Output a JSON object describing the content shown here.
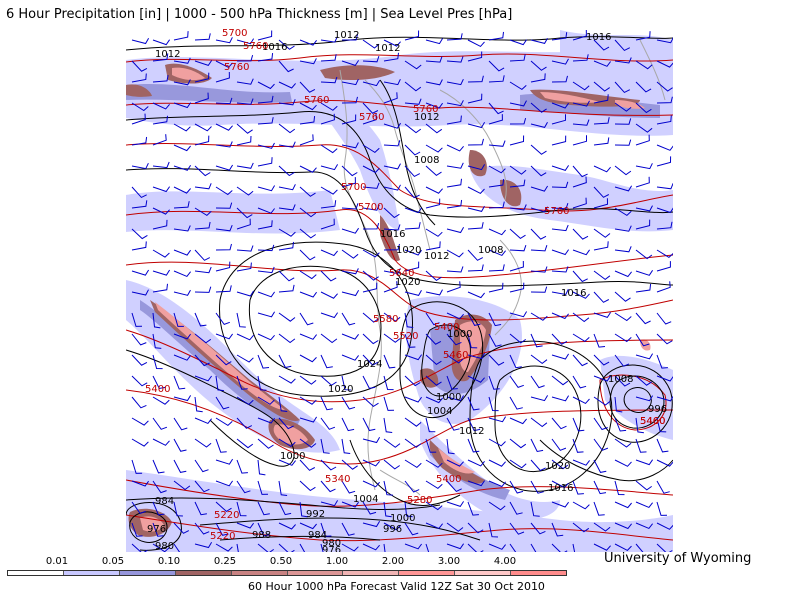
{
  "title": "6 Hour Precipitation [in] | 1000 - 500 hPa Thickness [m] | Sea Level Pres [hPa]",
  "credit": "University of Wyoming",
  "footer": "60 Hour 1000 hPa Forecast Valid 12Z Sat 30 Oct 2010",
  "legend": {
    "labels": [
      "0.01",
      "0.05",
      "0.10",
      "0.25",
      "0.50",
      "1.00",
      "2.00",
      "3.00",
      "4.00"
    ],
    "colors": [
      "#ffffff",
      "#c8c8ff",
      "#9696dc",
      "#a06464",
      "#c88282",
      "#dc9696",
      "#f0b4b4",
      "#ff9696",
      "#ffc8c8",
      "#ff8c8c"
    ]
  },
  "pressure_labels": [
    {
      "text": "1016"
    },
    {
      "text": "1016"
    },
    {
      "text": "1012"
    },
    {
      "text": "1012"
    },
    {
      "text": "1012"
    },
    {
      "text": "1008"
    },
    {
      "text": "1016"
    },
    {
      "text": "1020"
    },
    {
      "text": "1012"
    },
    {
      "text": "1008"
    },
    {
      "text": "1020"
    },
    {
      "text": "1016"
    },
    {
      "text": "1000"
    },
    {
      "text": "1024"
    },
    {
      "text": "1020"
    },
    {
      "text": "1000"
    },
    {
      "text": "1004"
    },
    {
      "text": "1008"
    },
    {
      "text": "996"
    },
    {
      "text": "1012"
    },
    {
      "text": "1020"
    },
    {
      "text": "1016"
    },
    {
      "text": "1000"
    },
    {
      "text": "1004"
    },
    {
      "text": "1000"
    },
    {
      "text": "992"
    },
    {
      "text": "996"
    },
    {
      "text": "984"
    },
    {
      "text": "988"
    },
    {
      "text": "984"
    },
    {
      "text": "980"
    },
    {
      "text": "976"
    },
    {
      "text": "980"
    },
    {
      "text": "976"
    },
    {
      "text": "1012"
    }
  ],
  "thickness_labels": [
    {
      "text": "5700"
    },
    {
      "text": "5760"
    },
    {
      "text": "5760"
    },
    {
      "text": "5760"
    },
    {
      "text": "5760"
    },
    {
      "text": "5760"
    },
    {
      "text": "5700"
    },
    {
      "text": "5700"
    },
    {
      "text": "5760"
    },
    {
      "text": "5640"
    },
    {
      "text": "5580"
    },
    {
      "text": "5520"
    },
    {
      "text": "5400"
    },
    {
      "text": "5460"
    },
    {
      "text": "5400"
    },
    {
      "text": "5460"
    },
    {
      "text": "5340"
    },
    {
      "text": "5400"
    },
    {
      "text": "5280"
    },
    {
      "text": "5220"
    },
    {
      "text": "5220"
    },
    {
      "text": "5460"
    }
  ],
  "colors": {
    "isobar": "#000000",
    "thickness": "#c00000",
    "wind_barb": "#0000cc",
    "coast": "#a0a0a0"
  }
}
